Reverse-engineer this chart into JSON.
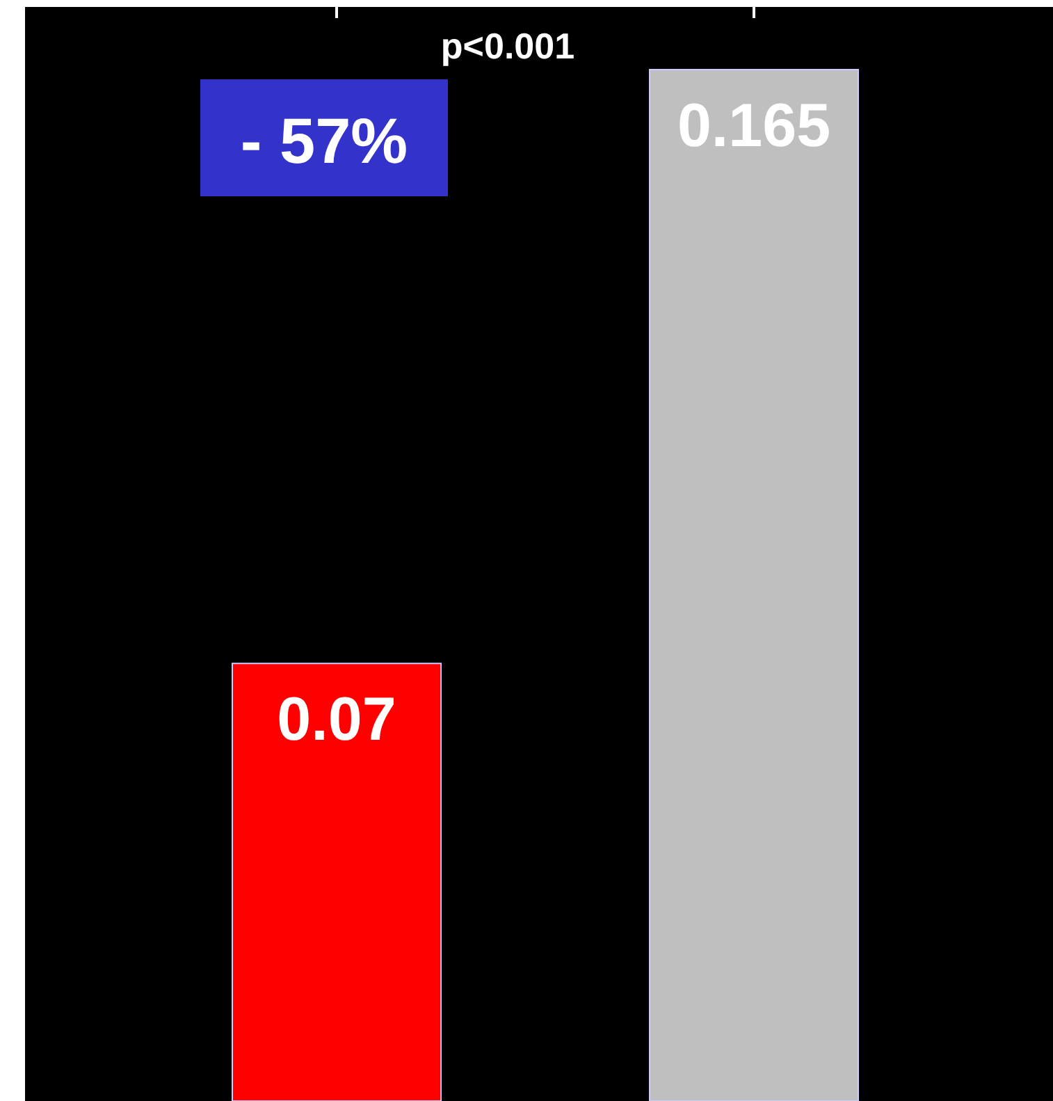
{
  "chart_data": {
    "type": "bar",
    "categories": [
      null,
      null
    ],
    "values": [
      0.07,
      0.165
    ],
    "value_labels": [
      "0.07",
      "0.165"
    ],
    "colors": [
      "#ff0000",
      "#bfbfbf"
    ],
    "annotations": [
      "p<0.001",
      "- 57%"
    ]
  }
}
